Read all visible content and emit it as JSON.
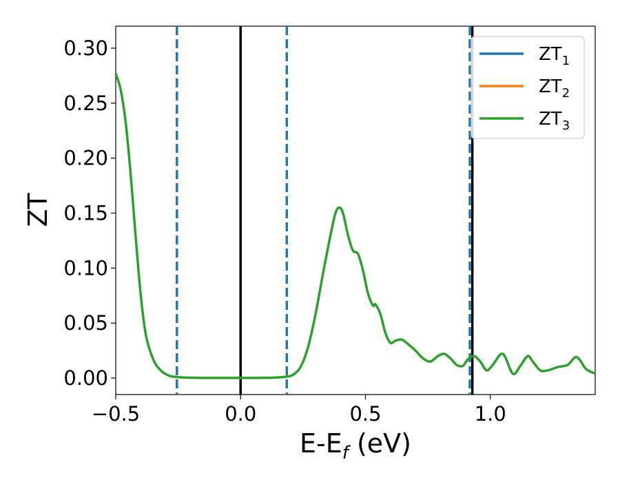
{
  "chart_data": {
    "type": "line",
    "xlabel": {
      "main": "E-E",
      "sub": "f",
      "unit": " (eV)"
    },
    "ylabel": "ZT",
    "xlim": [
      -0.5,
      1.42
    ],
    "ylim": [
      -0.015,
      0.32
    ],
    "xticks": [
      -0.5,
      0.0,
      0.5,
      1.0
    ],
    "xtick_labels": [
      "−0.5",
      "0.0",
      "0.5",
      "1.0"
    ],
    "yticks": [
      0.0,
      0.05,
      0.1,
      0.15,
      0.2,
      0.25,
      0.3
    ],
    "ytick_labels": [
      "0.00",
      "0.05",
      "0.10",
      "0.15",
      "0.20",
      "0.25",
      "0.30"
    ],
    "grid": false,
    "legend_position": "top-right",
    "series": [
      {
        "name": "ZT",
        "sub": "1",
        "color": "#1f77b4",
        "x": [],
        "y": []
      },
      {
        "name": "ZT",
        "sub": "2",
        "color": "#ff7f0e",
        "x": [],
        "y": []
      },
      {
        "name": "ZT",
        "sub": "3",
        "color": "#2ca02c",
        "x": [
          -0.5,
          -0.48,
          -0.46,
          -0.44,
          -0.42,
          -0.4,
          -0.38,
          -0.35,
          -0.32,
          -0.29,
          -0.26,
          -0.22,
          -0.15,
          -0.05,
          0.05,
          0.12,
          0.16,
          0.19,
          0.21,
          0.24,
          0.27,
          0.3,
          0.33,
          0.36,
          0.38,
          0.395,
          0.41,
          0.43,
          0.45,
          0.47,
          0.49,
          0.51,
          0.53,
          0.54,
          0.56,
          0.58,
          0.6,
          0.62,
          0.645,
          0.67,
          0.7,
          0.73,
          0.76,
          0.79,
          0.815,
          0.84,
          0.865,
          0.89,
          0.91,
          0.935,
          0.96,
          0.985,
          1.01,
          1.05,
          1.09,
          1.12,
          1.15,
          1.17,
          1.2,
          1.23,
          1.27,
          1.31,
          1.34,
          1.36,
          1.38,
          1.4,
          1.42
        ],
        "y": [
          0.277,
          0.262,
          0.232,
          0.185,
          0.128,
          0.076,
          0.04,
          0.017,
          0.007,
          0.0025,
          0.001,
          0.0004,
          0.0001,
          0.0001,
          0.0001,
          0.0003,
          0.0007,
          0.0015,
          0.003,
          0.01,
          0.028,
          0.058,
          0.095,
          0.13,
          0.15,
          0.155,
          0.15,
          0.13,
          0.116,
          0.113,
          0.098,
          0.077,
          0.066,
          0.067,
          0.058,
          0.041,
          0.032,
          0.034,
          0.035,
          0.031,
          0.025,
          0.018,
          0.015,
          0.02,
          0.022,
          0.018,
          0.012,
          0.011,
          0.017,
          0.02,
          0.015,
          0.007,
          0.012,
          0.022,
          0.004,
          0.011,
          0.02,
          0.015,
          0.007,
          0.007,
          0.01,
          0.012,
          0.019,
          0.016,
          0.009,
          0.006,
          0.004
        ]
      }
    ],
    "vlines": [
      {
        "x": 0.0,
        "style": "solid",
        "color": "#000000"
      },
      {
        "x": 0.928,
        "style": "solid",
        "color": "#000000"
      },
      {
        "x": -0.255,
        "style": "dashed",
        "color": "#1f77b4"
      },
      {
        "x": 0.185,
        "style": "dashed",
        "color": "#1f77b4"
      },
      {
        "x": 0.918,
        "style": "dashed",
        "color": "#1f77b4"
      }
    ]
  }
}
